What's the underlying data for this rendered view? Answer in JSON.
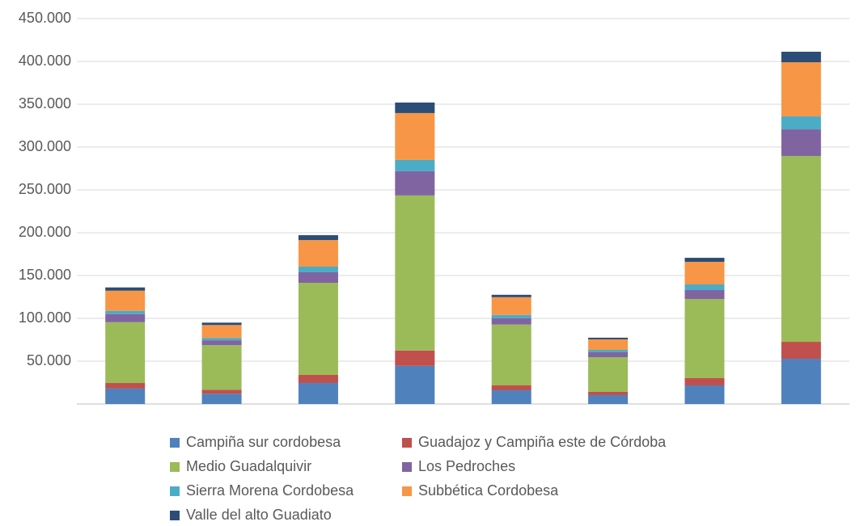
{
  "chart_data": {
    "type": "stacked_bar",
    "categories": [
      null,
      null,
      null,
      null,
      null,
      null,
      null,
      null
    ],
    "series": [
      {
        "name": "Campiña sur cordobesa",
        "color": "#4f81bd",
        "values": [
          18000,
          12000,
          24500,
          44500,
          16000,
          10400,
          21700,
          52800
        ]
      },
      {
        "name": "Guadajoz y Campiña este de Córdoba",
        "color": "#c0504d",
        "values": [
          6500,
          4700,
          9500,
          18000,
          5700,
          3800,
          8500,
          19800
        ]
      },
      {
        "name": "Medio Guadalquivir",
        "color": "#9bbb59",
        "values": [
          71000,
          52000,
          107500,
          181000,
          71000,
          40500,
          92400,
          217000
        ]
      },
      {
        "name": "Los Pedroches",
        "color": "#8064a2",
        "values": [
          9500,
          5700,
          12300,
          28300,
          7500,
          5700,
          10400,
          31100
        ]
      },
      {
        "name": "Sierra Morena Cordobesa",
        "color": "#4bacc6",
        "values": [
          3800,
          2800,
          6600,
          13200,
          3800,
          2800,
          6600,
          15100
        ]
      },
      {
        "name": "Subbética Cordobesa",
        "color": "#f79646",
        "values": [
          23500,
          15000,
          31000,
          54700,
          20700,
          12300,
          26400,
          63200
        ]
      },
      {
        "name": "Valle del alto Guadiato",
        "color": "#2c4d75",
        "values": [
          3800,
          2800,
          5700,
          12300,
          2800,
          1900,
          4700,
          12300
        ]
      }
    ],
    "ylim": [
      0,
      450000
    ],
    "yticks": [
      {
        "value": 50000,
        "label": "50.000"
      },
      {
        "value": 100000,
        "label": "100.000"
      },
      {
        "value": 150000,
        "label": "150.000"
      },
      {
        "value": 200000,
        "label": "200.000"
      },
      {
        "value": 250000,
        "label": "250.000"
      },
      {
        "value": 300000,
        "label": "300.000"
      },
      {
        "value": 350000,
        "label": "350.000"
      },
      {
        "value": 400000,
        "label": "400.000"
      },
      {
        "value": 450000,
        "label": "450.000"
      }
    ],
    "grid": true
  }
}
